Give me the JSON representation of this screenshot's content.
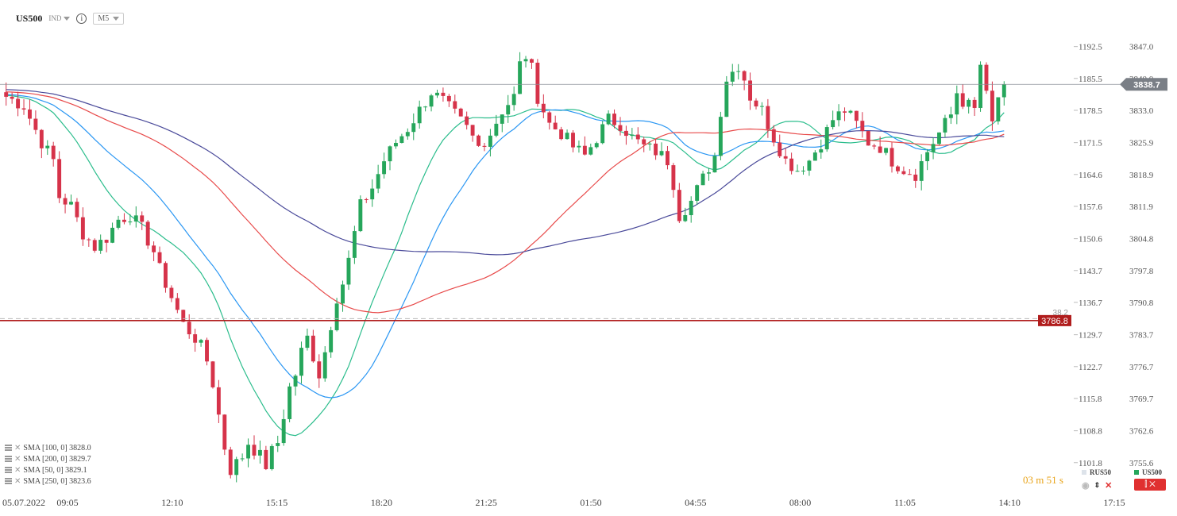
{
  "header": {
    "symbol": "US500",
    "type_label": "IND",
    "info_glyph": "i",
    "timeframe": "M5"
  },
  "legend": [
    {
      "label": "SMA [100,  0] 3828.0"
    },
    {
      "label": "SMA [200,  0] 3829.7"
    },
    {
      "label": "SMA [50,  0] 3829.1"
    },
    {
      "label": "SMA [250,  0] 3823.6"
    }
  ],
  "timer": "03 m  51 s",
  "compare_symbol": "RUS50",
  "main_symbol": "US500",
  "colors": {
    "up": "#26a65b",
    "down": "#d6334a",
    "sma100": "#2b97f3",
    "sma200": "#e84a4a",
    "sma50": "#2bbd8c",
    "sma250": "#4a4a9a",
    "level": "#b01c1c",
    "price_tag": "#7a7f86"
  },
  "chart_data": {
    "type": "candlestick",
    "x_ticks": [
      "05.07.2022",
      "09:05",
      "12:10",
      "15:15",
      "18:20",
      "21:25",
      "01:50",
      "04:55",
      "08:00",
      "11:05",
      "14:10",
      "17:15"
    ],
    "y_ticks_inner": [
      "1192.5",
      "1185.5",
      "1178.5",
      "1171.5",
      "1164.6",
      "1157.6",
      "1150.6",
      "1143.7",
      "1136.7",
      "1129.7",
      "1122.7",
      "1115.8",
      "1108.8",
      "1101.8"
    ],
    "y_ticks_outer": [
      "3847.0",
      "3840.0",
      "3833.0",
      "3825.9",
      "3818.9",
      "3811.9",
      "3804.8",
      "3797.8",
      "3790.8",
      "3783.7",
      "3776.7",
      "3769.7",
      "3762.6",
      "3755.6"
    ],
    "ylim": [
      3750.5,
      3852.0
    ],
    "current_price": "3838.7",
    "level_price": "3786.8",
    "level_label": "38.2",
    "price_path": [
      [
        0,
        3836
      ],
      [
        3,
        3834
      ],
      [
        6,
        3826
      ],
      [
        8,
        3822
      ],
      [
        9,
        3814
      ],
      [
        11,
        3812
      ],
      [
        13,
        3806
      ],
      [
        15,
        3803
      ],
      [
        17,
        3805
      ],
      [
        19,
        3809
      ],
      [
        21,
        3810
      ],
      [
        23,
        3807
      ],
      [
        25,
        3802
      ],
      [
        26,
        3798
      ],
      [
        28,
        3792
      ],
      [
        30,
        3786
      ],
      [
        32,
        3783
      ],
      [
        33,
        3781
      ],
      [
        34,
        3778
      ],
      [
        35,
        3773
      ],
      [
        37,
        3759
      ],
      [
        38,
        3754
      ],
      [
        40,
        3757
      ],
      [
        41,
        3760
      ],
      [
        43,
        3757
      ],
      [
        44,
        3755
      ],
      [
        45,
        3758
      ],
      [
        46,
        3760
      ],
      [
        47,
        3766
      ],
      [
        48,
        3772
      ],
      [
        49,
        3775
      ],
      [
        50,
        3780
      ],
      [
        51,
        3783
      ],
      [
        52,
        3779
      ],
      [
        53,
        3775
      ],
      [
        54,
        3780
      ],
      [
        55,
        3786
      ],
      [
        56,
        3792
      ],
      [
        57,
        3795
      ],
      [
        58,
        3800
      ],
      [
        59,
        3806
      ],
      [
        60,
        3812
      ],
      [
        62,
        3816
      ],
      [
        64,
        3822
      ],
      [
        66,
        3826
      ],
      [
        68,
        3829
      ],
      [
        70,
        3833
      ],
      [
        72,
        3837
      ],
      [
        74,
        3835
      ],
      [
        76,
        3832
      ],
      [
        78,
        3829
      ],
      [
        80,
        3825
      ],
      [
        82,
        3828
      ],
      [
        84,
        3833
      ],
      [
        86,
        3836
      ],
      [
        87,
        3843
      ],
      [
        88,
        3845
      ],
      [
        89,
        3842
      ],
      [
        90,
        3836
      ],
      [
        92,
        3830
      ],
      [
        94,
        3828
      ],
      [
        96,
        3825
      ],
      [
        98,
        3823
      ],
      [
        100,
        3827
      ],
      [
        102,
        3831
      ],
      [
        104,
        3830
      ],
      [
        106,
        3827
      ],
      [
        108,
        3825
      ],
      [
        110,
        3824
      ],
      [
        112,
        3822
      ],
      [
        113,
        3817
      ],
      [
        114,
        3810
      ],
      [
        116,
        3813
      ],
      [
        118,
        3818
      ],
      [
        120,
        3823
      ],
      [
        121,
        3833
      ],
      [
        122,
        3840
      ],
      [
        124,
        3843
      ],
      [
        125,
        3840
      ],
      [
        126,
        3836
      ],
      [
        128,
        3833
      ],
      [
        130,
        3827
      ],
      [
        132,
        3822
      ],
      [
        134,
        3820
      ],
      [
        136,
        3822
      ],
      [
        138,
        3826
      ],
      [
        140,
        3831
      ],
      [
        142,
        3833
      ],
      [
        144,
        3830
      ],
      [
        146,
        3826
      ],
      [
        148,
        3825
      ],
      [
        150,
        3822
      ],
      [
        152,
        3820
      ],
      [
        154,
        3819
      ],
      [
        156,
        3824
      ],
      [
        158,
        3828
      ],
      [
        160,
        3832
      ],
      [
        161,
        3837
      ],
      [
        162,
        3835
      ],
      [
        164,
        3833
      ],
      [
        165,
        3843
      ],
      [
        166,
        3836
      ],
      [
        167,
        3830
      ],
      [
        168,
        3836
      ],
      [
        169,
        3838.7
      ]
    ]
  }
}
